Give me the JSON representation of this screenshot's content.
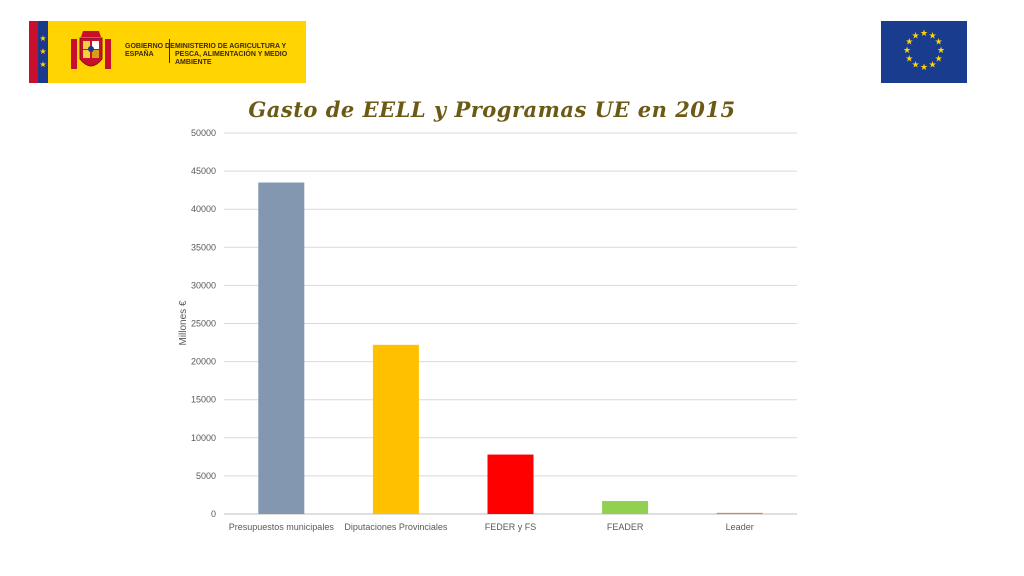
{
  "header": {
    "gov_logo_text": "GOBIERNO DE ESPAÑA",
    "ministry_text": "MINISTERIO DE AGRICULTURA Y PESCA, ALIMENTACIÓN Y MEDIO AMBIENTE",
    "eu_flag_icon": "eu-flag-icon",
    "colors": {
      "gov_yellow": "#ffd400",
      "eu_blue": "#1a3c8f"
    }
  },
  "chart_data": {
    "type": "bar",
    "title": "Gasto de EELL y Programas UE en 2015",
    "xlabel": "",
    "ylabel": "Millones €",
    "ylim": [
      0,
      50000
    ],
    "yticks": [
      0,
      5000,
      10000,
      15000,
      20000,
      25000,
      30000,
      35000,
      40000,
      45000,
      50000
    ],
    "grid": true,
    "legend": "none",
    "categories": [
      "Presupuestos municipales",
      "Diputaciones Provinciales",
      "FEDER y FS",
      "FEADER",
      "Leader"
    ],
    "values": [
      43500,
      22200,
      7800,
      1700,
      150
    ],
    "colors": [
      "#8497b0",
      "#ffc000",
      "#ff0000",
      "#92d050",
      "#ed7d31"
    ]
  }
}
